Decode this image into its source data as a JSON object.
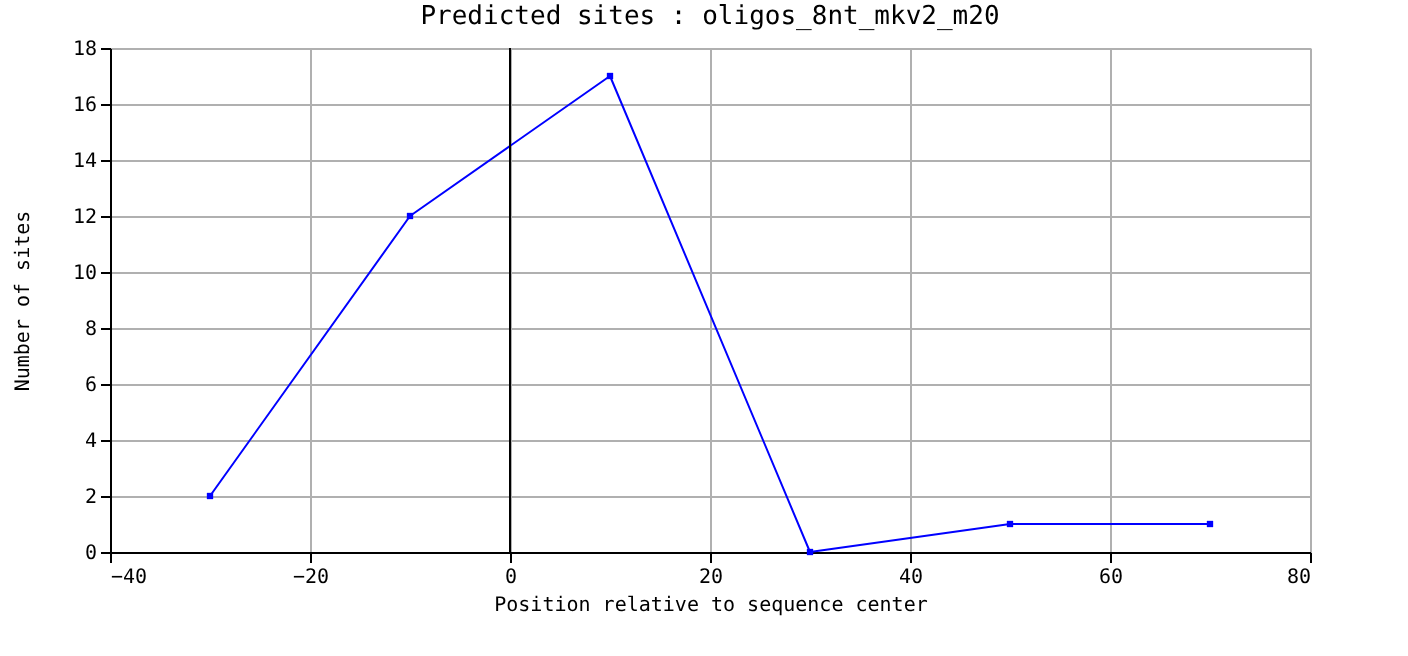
{
  "chart_data": {
    "type": "line",
    "title": "Predicted sites : oligos_8nt_mkv2_m20",
    "xlabel": "Position relative to sequence center",
    "ylabel": "Number of sites",
    "x": [
      -30,
      -10,
      10,
      30,
      50,
      70
    ],
    "series": [
      {
        "color": "#0000ff",
        "values": [
          2,
          12,
          17,
          0,
          1,
          1
        ]
      }
    ],
    "xlim": [
      -40,
      80
    ],
    "xticks": [
      -40,
      -20,
      0,
      20,
      40,
      60,
      80
    ],
    "ylim": [
      0,
      18
    ],
    "yticks": [
      0,
      2,
      4,
      6,
      8,
      10,
      12,
      14,
      16,
      18
    ],
    "grid": true,
    "marker": "square",
    "line_style": "solid",
    "ref_lines": [
      {
        "axis": "x",
        "value": 0,
        "color": "#000000"
      }
    ]
  }
}
